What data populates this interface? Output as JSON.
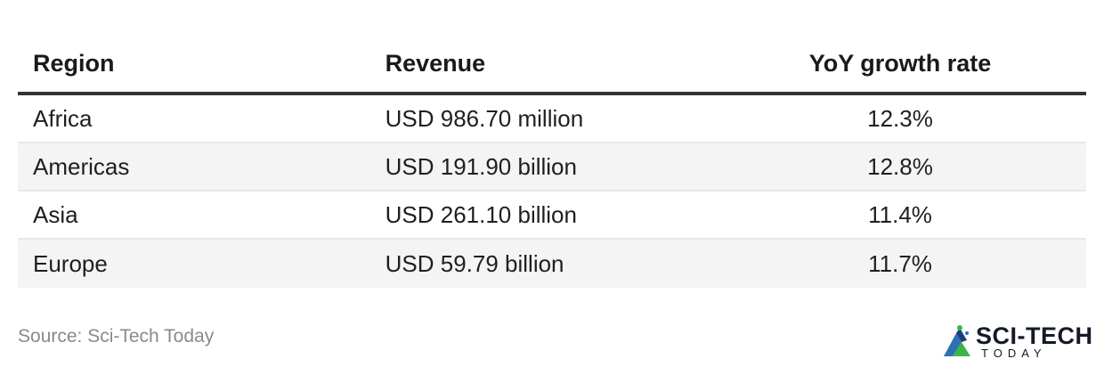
{
  "table": {
    "headers": [
      "Region",
      "Revenue",
      "YoY growth rate"
    ],
    "rows": [
      [
        "Africa",
        "USD 986.70 million",
        "12.3%"
      ],
      [
        "Americas",
        "USD 191.90 billion",
        "12.8%"
      ],
      [
        "Asia",
        "USD 261.10 billion",
        "11.4%"
      ],
      [
        "Europe",
        "USD 59.79 billion",
        "11.7%"
      ]
    ]
  },
  "footer": {
    "source": "Source: Sci-Tech Today",
    "logo_text": "SCI-TECH",
    "logo_sub": "TODAY",
    "logo_icon": "sci-tech-mountain-logo"
  },
  "colors": {
    "header_rule": "#333333",
    "stripe": "#f4f4f4",
    "logo_green": "#3bb54a",
    "logo_blue": "#2f6fb3",
    "logo_dark": "#141a2a"
  }
}
